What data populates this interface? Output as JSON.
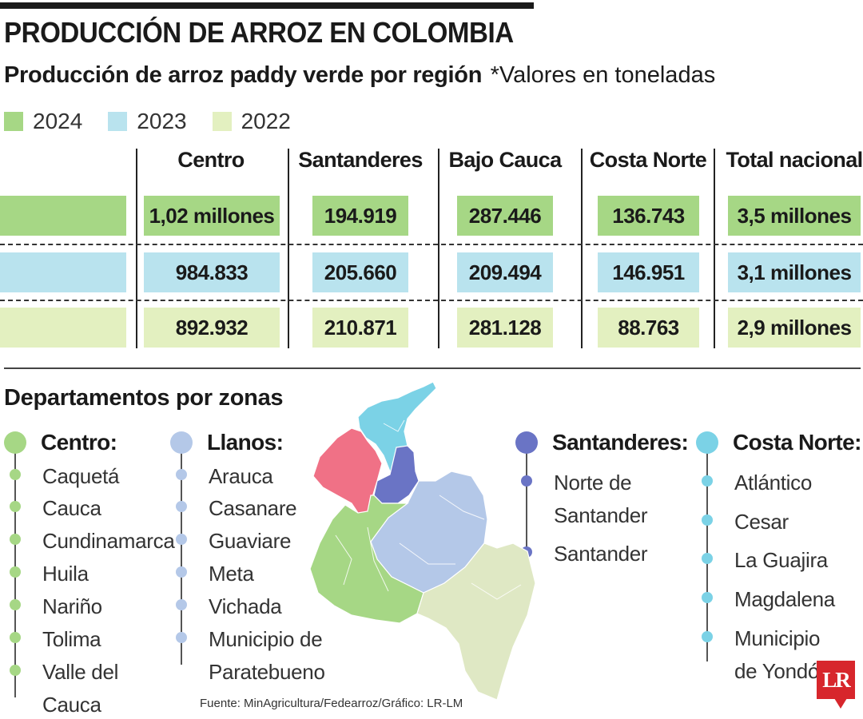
{
  "title": "PRODUCCIÓN DE ARROZ EN COLOMBIA",
  "subtitle": "Producción de arroz paddy verde por región",
  "units_note": "*Valores en toneladas",
  "colors": {
    "y2024": "#a6d785",
    "y2023": "#b9e3ee",
    "y2022": "#e3f0c0",
    "centro": "#a6d785",
    "llanos": "#b4c8e8",
    "santanderes": "#6a74c5",
    "costa_norte": "#7bd2e6",
    "caribe": "#f07186",
    "sur": "#dfe8c4",
    "logo": "#d7262c"
  },
  "legend": [
    {
      "label": "2024",
      "color": "#a6d785"
    },
    {
      "label": "2023",
      "color": "#b9e3ee"
    },
    {
      "label": "2022",
      "color": "#e3f0c0"
    }
  ],
  "table": {
    "headers": [
      "Centro",
      "Santanderes",
      "Bajo Cauca",
      "Costa Norte",
      "Total nacional"
    ],
    "rows": [
      {
        "year": "2024",
        "values": [
          "1,02 millones",
          "194.919",
          "287.446",
          "136.743",
          "3,5 millones"
        ]
      },
      {
        "year": "2023",
        "values": [
          "984.833",
          "205.660",
          "209.494",
          "146.951",
          "3,1 millones"
        ]
      },
      {
        "year": "2022",
        "values": [
          "892.932",
          "210.871",
          "281.128",
          "88.763",
          "2,9 millones"
        ]
      }
    ]
  },
  "chart_data": {
    "type": "table",
    "title": "PRODUCCIÓN DE ARROZ EN COLOMBIA",
    "subtitle": "Producción de arroz paddy verde por región",
    "unit": "*Valores en toneladas",
    "columns": [
      "Centro",
      "Santanderes",
      "Bajo Cauca",
      "Costa Norte",
      "Total nacional"
    ],
    "series": [
      {
        "name": "2024",
        "values": [
          1020000,
          194919,
          287446,
          136743,
          3500000
        ]
      },
      {
        "name": "2023",
        "values": [
          984833,
          205660,
          209494,
          146951,
          3100000
        ]
      },
      {
        "name": "2022",
        "values": [
          892932,
          210871,
          281128,
          88763,
          2900000
        ]
      }
    ]
  },
  "departments_title": "Departamentos por zonas",
  "zones": {
    "centro": {
      "name": "Centro:",
      "items": [
        "Caquetá",
        "Cauca",
        "Cundinamarca",
        "Huila",
        "Nariño",
        "Tolima",
        "Valle del\nCauca"
      ]
    },
    "llanos": {
      "name": "Llanos:",
      "items": [
        "Arauca",
        "Casanare",
        "Guaviare",
        "Meta",
        "Vichada",
        "Municipio de\nParatebueno"
      ]
    },
    "santanderes": {
      "name": "Santanderes:",
      "items": [
        "Norte de\nSantander",
        "Santander"
      ]
    },
    "costa_norte": {
      "name": "Costa Norte:",
      "items": [
        "Atlántico",
        "Cesar",
        "La Guajira",
        "Magdalena",
        "Municipio\nde Yondó"
      ]
    }
  },
  "source": "Fuente: MinAgricultura/Fedearroz/Gráfico: LR-LM",
  "logo_text": "LR"
}
